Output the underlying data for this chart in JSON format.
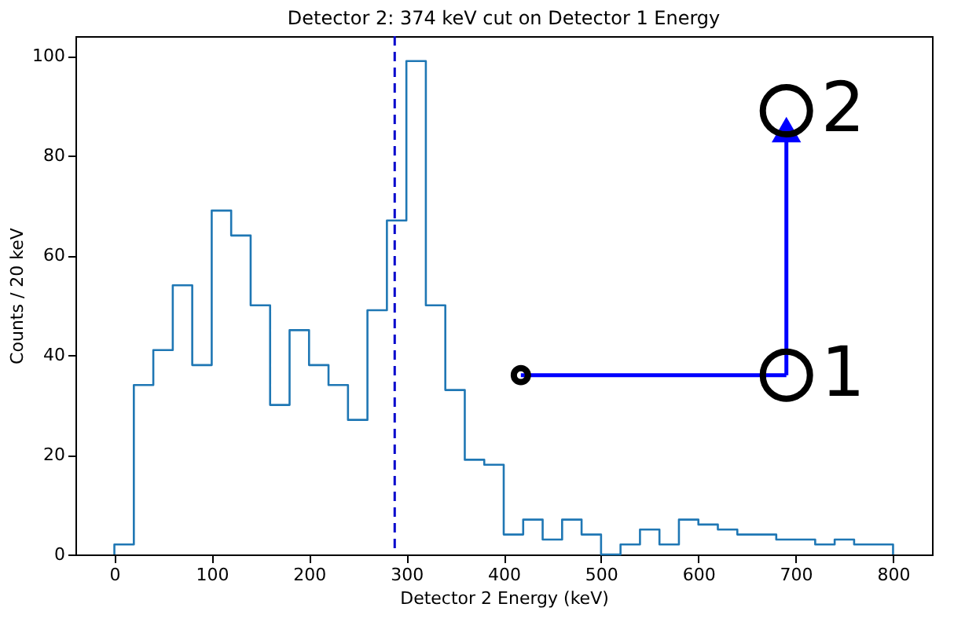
{
  "chart_data": {
    "type": "histogram",
    "title": "Detector 2: 374 keV cut on Detector 1 Energy",
    "xlabel": "Detector 2 Energy (keV)",
    "ylabel": "Counts / 20 keV",
    "bins": [
      0,
      20,
      40,
      60,
      80,
      100,
      120,
      140,
      160,
      180,
      200,
      220,
      240,
      260,
      280,
      300,
      320,
      340,
      360,
      380,
      400,
      420,
      440,
      460,
      480,
      500,
      520,
      540,
      560,
      580,
      600,
      620,
      640,
      660,
      680,
      700,
      720,
      740,
      760,
      780,
      800
    ],
    "values": [
      2,
      34,
      41,
      54,
      38,
      69,
      64,
      50,
      30,
      45,
      38,
      34,
      27,
      49,
      67,
      99,
      50,
      33,
      19,
      18,
      4,
      7,
      3,
      7,
      4,
      0,
      2,
      5,
      2,
      7,
      6,
      5,
      4,
      4,
      3,
      3,
      2,
      3,
      2,
      2
    ],
    "color": "#1f77b4",
    "xlim": [
      -40,
      840
    ],
    "xticks": [
      0,
      100,
      200,
      300,
      400,
      500,
      600,
      700,
      800
    ],
    "ylim": [
      0,
      104
    ],
    "yticks": [
      0,
      20,
      40,
      60,
      80,
      100
    ],
    "ref_lines": [
      {
        "axis": "x",
        "value": 288,
        "color": "#0000cc",
        "line_style": "dashed"
      }
    ],
    "annotations": [
      "1",
      "2"
    ],
    "grid": false
  }
}
